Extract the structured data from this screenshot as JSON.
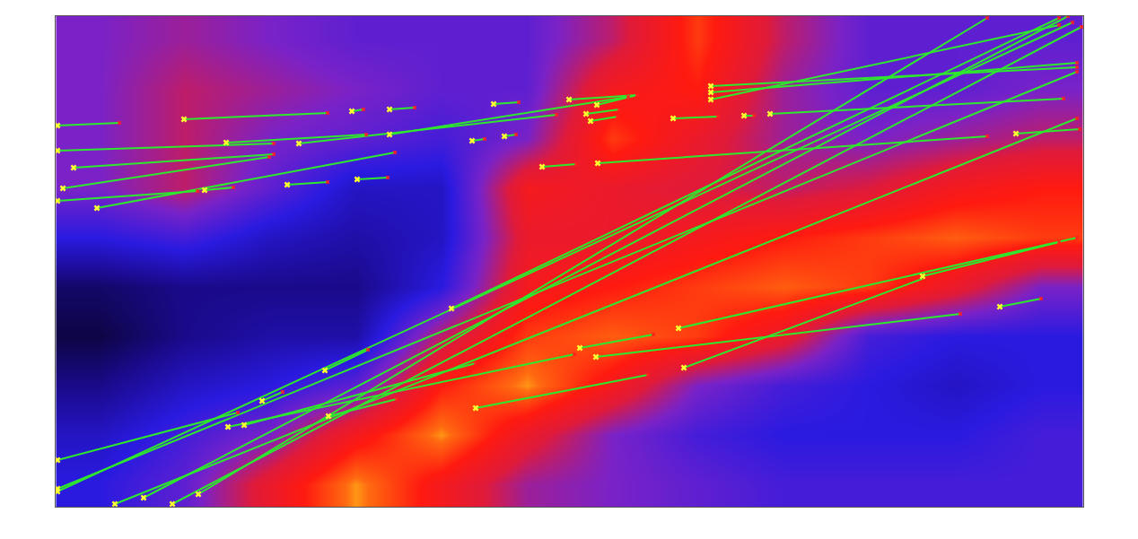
{
  "chart_data": {
    "type": "heatmap",
    "tick_labels": false,
    "grid": false,
    "xlim": [
      0,
      1145
    ],
    "ylim": [
      0,
      547
    ],
    "zlim": [
      0,
      1
    ],
    "x": [
      48,
      143,
      238,
      334,
      429,
      525,
      620,
      715,
      811,
      906,
      1002,
      1097
    ],
    "y": [
      25,
      80,
      135,
      190,
      245,
      300,
      355,
      410,
      465,
      520
    ],
    "z": [
      [
        0.35,
        0.45,
        0.7,
        0.95,
        0.75,
        0.55,
        0.5,
        0.45,
        0.4,
        0.4,
        0.4,
        0.4
      ],
      [
        0.3,
        0.4,
        0.5,
        0.75,
        0.95,
        0.7,
        0.5,
        0.4,
        0.35,
        0.35,
        0.35,
        0.4
      ],
      [
        0.2,
        0.3,
        0.35,
        0.45,
        0.8,
        0.95,
        0.75,
        0.5,
        0.4,
        0.35,
        0.3,
        0.35
      ],
      [
        0.1,
        0.2,
        0.25,
        0.25,
        0.6,
        0.85,
        0.9,
        0.85,
        0.7,
        0.4,
        0.35,
        0.35
      ],
      [
        0.15,
        0.2,
        0.2,
        0.2,
        0.35,
        0.75,
        0.8,
        0.85,
        0.9,
        0.85,
        0.7,
        0.5
      ],
      [
        0.35,
        0.4,
        0.3,
        0.25,
        0.3,
        0.7,
        0.7,
        0.75,
        0.8,
        0.85,
        0.9,
        0.85
      ],
      [
        0.5,
        0.6,
        0.45,
        0.3,
        0.3,
        0.75,
        0.7,
        0.65,
        0.6,
        0.65,
        0.75,
        0.8
      ],
      [
        0.5,
        0.6,
        0.5,
        0.45,
        0.4,
        0.5,
        0.85,
        0.7,
        0.55,
        0.5,
        0.55,
        0.6
      ],
      [
        0.5,
        0.6,
        0.55,
        0.5,
        0.45,
        0.45,
        0.75,
        0.8,
        0.55,
        0.45,
        0.45,
        0.5
      ],
      [
        0.5,
        0.55,
        0.5,
        0.45,
        0.45,
        0.45,
        0.6,
        0.85,
        0.6,
        0.45,
        0.45,
        0.45
      ]
    ],
    "segments": {
      "color": "#2ee82e",
      "marker": "x",
      "lines": [
        [
          2,
          425,
          71,
          428
        ],
        [
          143,
          432,
          303,
          439
        ],
        [
          330,
          441,
          343,
          443
        ],
        [
          372,
          443,
          400,
          445
        ],
        [
          488,
          449,
          516,
          451
        ],
        [
          572,
          454,
          648,
          459
        ],
        [
          603,
          448,
          648,
          459
        ],
        [
          591,
          438,
          628,
          443
        ],
        [
          596,
          430,
          626,
          435
        ],
        [
          190,
          406,
          346,
          415
        ],
        [
          271,
          405,
          558,
          437
        ],
        [
          372,
          415,
          638,
          457
        ],
        [
          464,
          408,
          478,
          410
        ],
        [
          500,
          413,
          513,
          415
        ],
        [
          2,
          397,
          243,
          405
        ],
        [
          20,
          378,
          243,
          393
        ],
        [
          8,
          355,
          238,
          390
        ],
        [
          2,
          341,
          158,
          352
        ],
        [
          166,
          353,
          198,
          356
        ],
        [
          46,
          333,
          378,
          395
        ],
        [
          258,
          359,
          303,
          362
        ],
        [
          336,
          365,
          370,
          367
        ],
        [
          542,
          379,
          580,
          382
        ],
        [
          604,
          383,
          1038,
          413
        ],
        [
          688,
          433,
          738,
          435
        ],
        [
          767,
          436,
          778,
          436
        ],
        [
          796,
          438,
          1123,
          455
        ],
        [
          730,
          469,
          1138,
          490
        ],
        [
          730,
          462,
          1138,
          495
        ],
        [
          730,
          454,
          1118,
          537
        ],
        [
          1070,
          416,
          1141,
          421
        ],
        [
          441,
          221,
          1118,
          545
        ],
        [
          2,
          17,
          1133,
          540
        ],
        [
          2,
          20,
          1138,
          485
        ],
        [
          66,
          3,
          1138,
          433
        ],
        [
          98,
          10,
          1128,
          547
        ],
        [
          130,
          3,
          1143,
          535
        ],
        [
          159,
          14,
          1038,
          545
        ],
        [
          2,
          52,
          203,
          105
        ],
        [
          230,
          118,
          253,
          128
        ],
        [
          300,
          152,
          348,
          175
        ],
        [
          192,
          89,
          578,
          170
        ],
        [
          210,
          91,
          468,
          160
        ],
        [
          304,
          101,
          380,
          120
        ],
        [
          468,
          110,
          660,
          147
        ],
        [
          584,
          177,
          666,
          192
        ],
        [
          602,
          167,
          1008,
          215
        ],
        [
          694,
          199,
          1138,
          300
        ],
        [
          700,
          155,
          968,
          255
        ],
        [
          966,
          257,
          1118,
          295
        ],
        [
          1052,
          223,
          1098,
          232
        ]
      ]
    }
  }
}
